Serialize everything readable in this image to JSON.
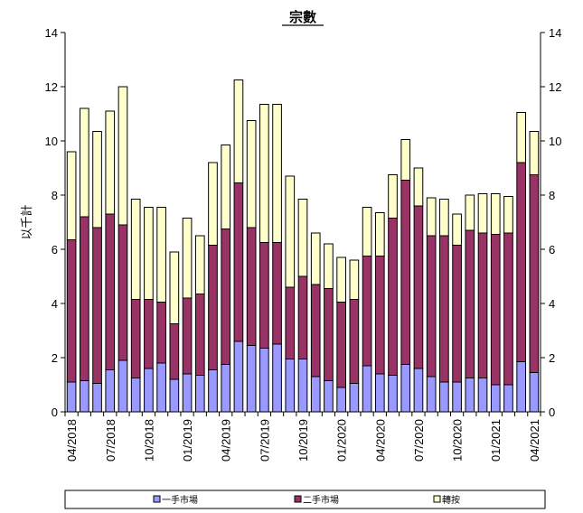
{
  "chart_data": {
    "type": "bar",
    "stacked": true,
    "title": "宗數",
    "ylabel": "以千計",
    "ylim": [
      0,
      14
    ],
    "yticks": [
      0,
      2,
      4,
      6,
      8,
      10,
      12,
      14
    ],
    "categories": [
      "04/2018",
      "05/2018",
      "06/2018",
      "07/2018",
      "08/2018",
      "09/2018",
      "10/2018",
      "11/2018",
      "12/2018",
      "01/2019",
      "02/2019",
      "03/2019",
      "04/2019",
      "05/2019",
      "06/2019",
      "07/2019",
      "08/2019",
      "09/2019",
      "10/2019",
      "11/2019",
      "12/2019",
      "01/2020",
      "02/2020",
      "03/2020",
      "04/2020",
      "05/2020",
      "06/2020",
      "07/2020",
      "08/2020",
      "09/2020",
      "10/2020",
      "11/2020",
      "12/2020",
      "01/2021",
      "02/2021",
      "03/2021",
      "04/2021"
    ],
    "xtick_labels": [
      "04/2018",
      "07/2018",
      "10/2018",
      "01/2019",
      "04/2019",
      "07/2019",
      "10/2019",
      "01/2020",
      "04/2020",
      "07/2020",
      "10/2020",
      "01/2021",
      "04/2021"
    ],
    "series": [
      {
        "name": "一手市場",
        "color": "#9999ff",
        "values": [
          1.1,
          1.15,
          1.05,
          1.55,
          1.9,
          1.25,
          1.6,
          1.8,
          1.2,
          1.4,
          1.35,
          1.55,
          1.75,
          2.6,
          2.45,
          2.35,
          2.5,
          1.95,
          1.95,
          1.3,
          1.15,
          0.9,
          1.05,
          1.7,
          1.4,
          1.35,
          1.75,
          1.6,
          1.3,
          1.1,
          1.1,
          1.25,
          1.25,
          1.0,
          1.0,
          1.85,
          1.45
        ]
      },
      {
        "name": "二手市場",
        "color": "#993366",
        "values": [
          5.25,
          6.05,
          5.75,
          5.75,
          5.0,
          2.9,
          2.55,
          2.25,
          2.05,
          2.8,
          3.0,
          4.6,
          5.0,
          5.85,
          4.35,
          3.9,
          3.75,
          2.65,
          3.05,
          3.4,
          3.4,
          3.15,
          3.1,
          4.05,
          4.35,
          5.8,
          6.8,
          6.0,
          5.2,
          5.4,
          5.05,
          5.45,
          5.35,
          5.55,
          5.6,
          7.35,
          7.3
        ]
      },
      {
        "name": "轉按",
        "color": "#ffffcc",
        "values": [
          3.25,
          4.0,
          3.55,
          3.8,
          5.1,
          3.7,
          3.4,
          3.5,
          2.65,
          2.95,
          2.15,
          3.05,
          3.1,
          3.8,
          3.95,
          5.1,
          5.1,
          4.1,
          2.85,
          1.9,
          1.65,
          1.65,
          1.45,
          1.8,
          1.6,
          1.6,
          1.5,
          1.4,
          1.4,
          1.35,
          1.15,
          1.3,
          1.45,
          1.5,
          1.35,
          1.85,
          1.6
        ]
      }
    ],
    "legend_position": "bottom",
    "grid": false
  }
}
